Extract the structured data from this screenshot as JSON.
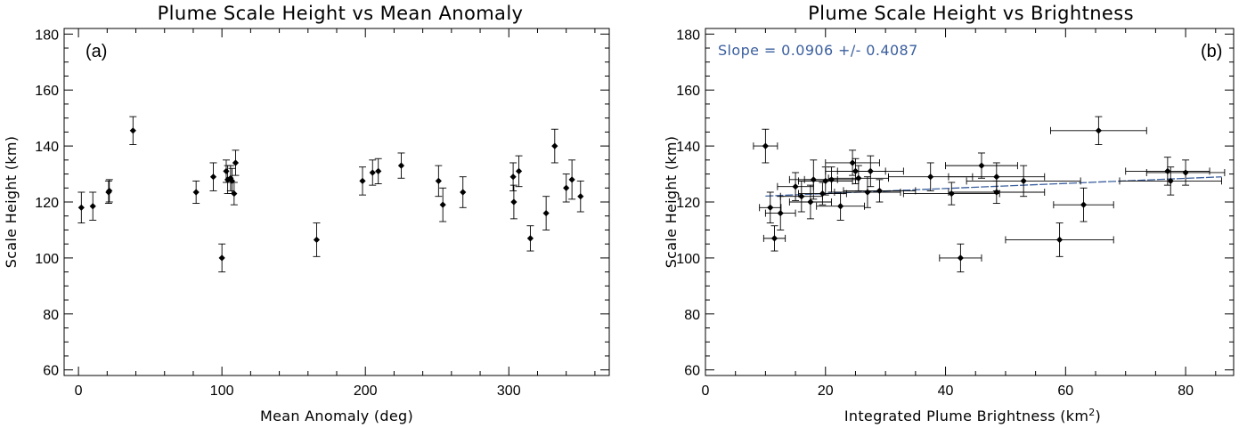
{
  "chart_data": [
    {
      "type": "scatter",
      "title": "Plume Scale Height vs Mean Anomaly",
      "panel_label": "(a)",
      "xlabel": "Mean Anomaly (deg)",
      "ylabel": "Scale Height (km)",
      "xlim": [
        -10,
        370
      ],
      "ylim": [
        58,
        182
      ],
      "xticks": [
        0,
        100,
        200,
        300
      ],
      "yticks": [
        60,
        80,
        100,
        120,
        140,
        160,
        180
      ],
      "x_minor_step": 20,
      "y_minor_step": 5,
      "error_bars": "y",
      "points": [
        {
          "x": 2,
          "y": 118,
          "yerr": 5.5
        },
        {
          "x": 10,
          "y": 118.5,
          "yerr": 5
        },
        {
          "x": 21,
          "y": 123.5,
          "yerr": 4
        },
        {
          "x": 21.5,
          "y": 124,
          "yerr": 4
        },
        {
          "x": 38,
          "y": 145.5,
          "yerr": 5
        },
        {
          "x": 82,
          "y": 123.5,
          "yerr": 4
        },
        {
          "x": 94,
          "y": 129,
          "yerr": 5
        },
        {
          "x": 100,
          "y": 100,
          "yerr": 5
        },
        {
          "x": 103,
          "y": 131,
          "yerr": 4
        },
        {
          "x": 104,
          "y": 128,
          "yerr": 5
        },
        {
          "x": 106,
          "y": 128.5,
          "yerr": 4.5
        },
        {
          "x": 107,
          "y": 127.5,
          "yerr": 4.5
        },
        {
          "x": 108.5,
          "y": 123,
          "yerr": 4
        },
        {
          "x": 109.5,
          "y": 134,
          "yerr": 4.5
        },
        {
          "x": 166,
          "y": 106.5,
          "yerr": 6
        },
        {
          "x": 198,
          "y": 127.5,
          "yerr": 5
        },
        {
          "x": 205,
          "y": 130.5,
          "yerr": 4.5
        },
        {
          "x": 209,
          "y": 131,
          "yerr": 4.5
        },
        {
          "x": 225,
          "y": 133,
          "yerr": 4.5
        },
        {
          "x": 251,
          "y": 127.5,
          "yerr": 5.5
        },
        {
          "x": 254,
          "y": 119,
          "yerr": 6
        },
        {
          "x": 268,
          "y": 123.5,
          "yerr": 5.5
        },
        {
          "x": 303,
          "y": 129,
          "yerr": 5
        },
        {
          "x": 303.5,
          "y": 120,
          "yerr": 6
        },
        {
          "x": 307,
          "y": 131,
          "yerr": 5.5
        },
        {
          "x": 315,
          "y": 107,
          "yerr": 4.5
        },
        {
          "x": 326,
          "y": 116,
          "yerr": 6
        },
        {
          "x": 332,
          "y": 140,
          "yerr": 6
        },
        {
          "x": 340,
          "y": 125,
          "yerr": 5
        },
        {
          "x": 344,
          "y": 128,
          "yerr": 7
        },
        {
          "x": 350,
          "y": 122,
          "yerr": 5.5
        }
      ]
    },
    {
      "type": "scatter",
      "title": "Plume Scale Height vs Brightness",
      "panel_label": "(b)",
      "xlabel": "Integrated Plume Brightness (km",
      "xlabel_superscript": "2",
      "xlabel_suffix": ")",
      "ylabel": "Scale Height (km)",
      "annotation": "Slope = 0.0906 +/- 0.4087",
      "annotation_color": "#3b5f9e",
      "fit_line_color": "#3b5f9e",
      "xlim": [
        0,
        88
      ],
      "ylim": [
        58,
        182
      ],
      "xticks": [
        0,
        20,
        40,
        60,
        80
      ],
      "yticks": [
        60,
        80,
        100,
        120,
        140,
        160,
        180
      ],
      "x_minor_step": 5,
      "y_minor_step": 5,
      "error_bars": "xy",
      "fit_line": {
        "slope": 0.0906,
        "intercept": 121.2,
        "x_range": [
          10,
          86
        ]
      },
      "points": [
        {
          "x": 10,
          "y": 140,
          "xerr": 2,
          "yerr": 6
        },
        {
          "x": 10.8,
          "y": 118,
          "xerr": 1.8,
          "yerr": 5.5
        },
        {
          "x": 11.5,
          "y": 107,
          "xerr": 1.8,
          "yerr": 4.5
        },
        {
          "x": 12.5,
          "y": 116,
          "xerr": 2.5,
          "yerr": 6
        },
        {
          "x": 15,
          "y": 125.5,
          "xerr": 3,
          "yerr": 5
        },
        {
          "x": 16,
          "y": 122,
          "xerr": 3.5,
          "yerr": 5.5
        },
        {
          "x": 17.5,
          "y": 120,
          "xerr": 3.5,
          "yerr": 6
        },
        {
          "x": 18,
          "y": 128,
          "xerr": 4,
          "yerr": 7
        },
        {
          "x": 19.5,
          "y": 123,
          "xerr": 4,
          "yerr": 4
        },
        {
          "x": 20,
          "y": 127.5,
          "xerr": 4.5,
          "yerr": 5
        },
        {
          "x": 21,
          "y": 128,
          "xerr": 4.5,
          "yerr": 4.5
        },
        {
          "x": 22.5,
          "y": 118.5,
          "xerr": 4,
          "yerr": 5
        },
        {
          "x": 24.5,
          "y": 134,
          "xerr": 4.5,
          "yerr": 4.5
        },
        {
          "x": 25,
          "y": 131,
          "xerr": 5,
          "yerr": 4.5
        },
        {
          "x": 25.5,
          "y": 128.5,
          "xerr": 5,
          "yerr": 4.5
        },
        {
          "x": 27,
          "y": 123.5,
          "xerr": 5.5,
          "yerr": 5.5
        },
        {
          "x": 27.5,
          "y": 131,
          "xerr": 5.5,
          "yerr": 5.5
        },
        {
          "x": 29,
          "y": 124,
          "xerr": 6,
          "yerr": 4
        },
        {
          "x": 37.5,
          "y": 129,
          "xerr": 7,
          "yerr": 5
        },
        {
          "x": 41,
          "y": 123,
          "xerr": 8,
          "yerr": 4
        },
        {
          "x": 42.5,
          "y": 100,
          "xerr": 3.5,
          "yerr": 5
        },
        {
          "x": 46,
          "y": 133,
          "xerr": 6,
          "yerr": 4.5
        },
        {
          "x": 48.5,
          "y": 123.5,
          "xerr": 8,
          "yerr": 4
        },
        {
          "x": 48.5,
          "y": 129,
          "xerr": 8,
          "yerr": 5
        },
        {
          "x": 53,
          "y": 127.5,
          "xerr": 9.5,
          "yerr": 5.5
        },
        {
          "x": 59,
          "y": 106.5,
          "xerr": 9,
          "yerr": 6
        },
        {
          "x": 63,
          "y": 119,
          "xerr": 5,
          "yerr": 6
        },
        {
          "x": 65.5,
          "y": 145.5,
          "xerr": 8,
          "yerr": 5
        },
        {
          "x": 77,
          "y": 131,
          "xerr": 7,
          "yerr": 5
        },
        {
          "x": 77.5,
          "y": 127.5,
          "xerr": 8.5,
          "yerr": 5
        },
        {
          "x": 80,
          "y": 130.5,
          "xerr": 6.5,
          "yerr": 4.5
        }
      ]
    }
  ]
}
